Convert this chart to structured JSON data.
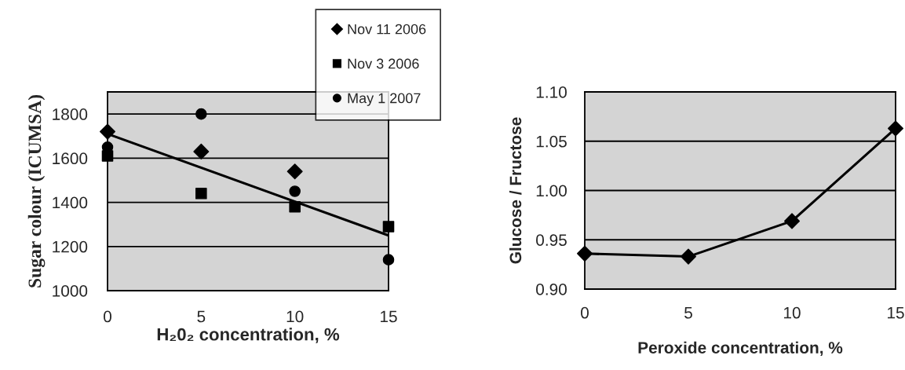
{
  "chart_data": [
    {
      "type": "scatter",
      "xlabel": "H₂0₂ concentration, %",
      "ylabel": "Sugar colour (ICUMSA)",
      "x": [
        0,
        5,
        10,
        15
      ],
      "xlim": [
        0,
        15
      ],
      "xticks": [
        0,
        5,
        10,
        15
      ],
      "ylim": [
        1000,
        1900
      ],
      "yticks": [
        1000,
        1200,
        1400,
        1600,
        1800
      ],
      "grid": "y",
      "legend": "top right",
      "series": [
        {
          "name": "Nov 11 2006",
          "color": "#000000",
          "marker": "diamond",
          "values": [
            1720,
            1630,
            1540,
            null
          ]
        },
        {
          "name": "Nov 3 2006",
          "color": "#000000",
          "marker": "square",
          "values": [
            1610,
            1440,
            1380,
            1290
          ]
        },
        {
          "name": "May 1 2007",
          "color": "#000000",
          "marker": "circle",
          "values": [
            1650,
            1800,
            1450,
            1140
          ]
        },
        {
          "type": "line",
          "color": "#000000",
          "marker": "none",
          "x": [
            0,
            15
          ],
          "values": [
            1710,
            1250
          ]
        }
      ]
    },
    {
      "type": "line",
      "xlabel": "Peroxide concentration, %",
      "ylabel": "Glucose / Fructose",
      "x": [
        0,
        5,
        10,
        15
      ],
      "xlim": [
        0,
        15
      ],
      "xticks": [
        0,
        5,
        10,
        15
      ],
      "ylim": [
        0.9,
        1.1
      ],
      "yticks": [
        {
          "value": 0.9,
          "label": "0.90"
        },
        {
          "value": 0.95,
          "label": "0.95"
        },
        {
          "value": 1.0,
          "label": "1.00"
        },
        {
          "value": 1.05,
          "label": "1.05"
        },
        {
          "value": 1.1,
          "label": "1.10"
        }
      ],
      "grid": "y",
      "marker": "diamond",
      "line_style": "solid",
      "series": [
        {
          "color": "#000000",
          "values": [
            0.936,
            0.933,
            0.969,
            1.063
          ]
        }
      ]
    }
  ]
}
